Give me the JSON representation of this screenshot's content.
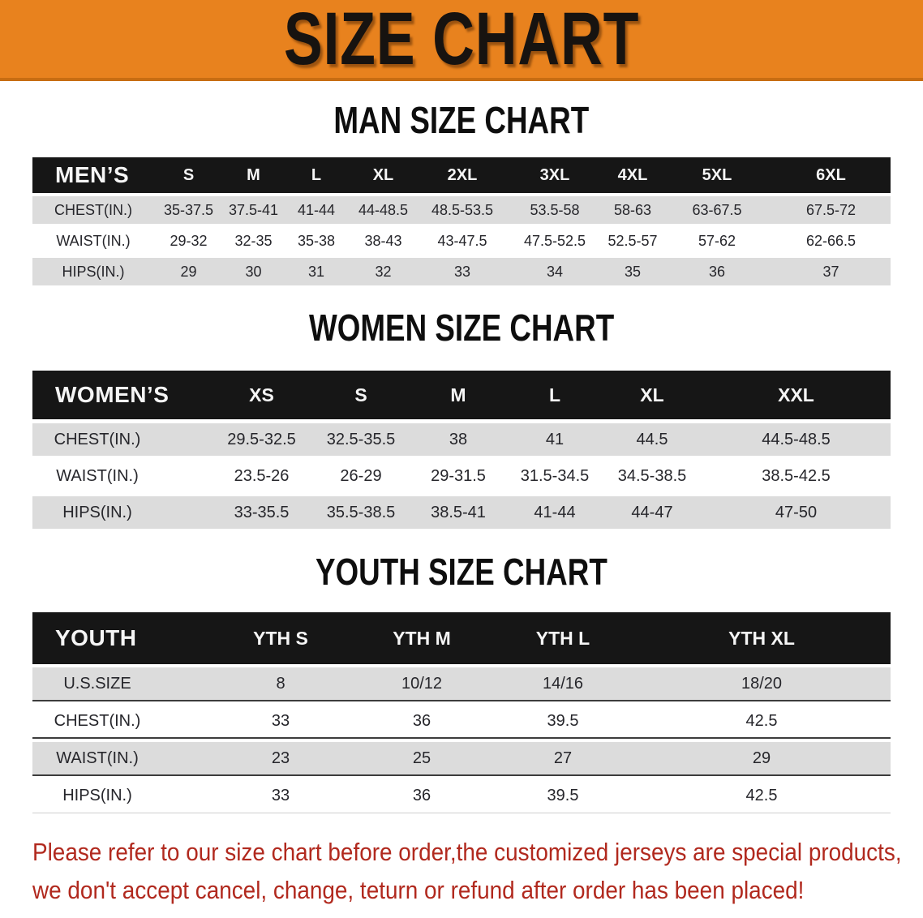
{
  "banner": {
    "title": "SIZE CHART"
  },
  "colors": {
    "banner_orange": "#e8821e",
    "banner_border_orange": "#c76d12",
    "table_header_black": "#161616",
    "row_gray": "#dcdcdc",
    "disclaimer_red": "#b1291e"
  },
  "men": {
    "heading": "MAN SIZE CHART",
    "header": [
      "MEN’S",
      "S",
      "M",
      "L",
      "XL",
      "2XL",
      "3XL",
      "4XL",
      "5XL",
      "6XL"
    ],
    "rows": [
      [
        "CHEST(IN.)",
        "35-37.5",
        "37.5-41",
        "41-44",
        "44-48.5",
        "48.5-53.5",
        "53.5-58",
        "58-63",
        "63-67.5",
        "67.5-72"
      ],
      [
        "WAIST(IN.)",
        "29-32",
        "32-35",
        "35-38",
        "38-43",
        "43-47.5",
        "47.5-52.5",
        "52.5-57",
        "57-62",
        "62-66.5"
      ],
      [
        "HIPS(IN.)",
        "29",
        "30",
        "31",
        "32",
        "33",
        "34",
        "35",
        "36",
        "37"
      ]
    ]
  },
  "women": {
    "heading": "WOMEN SIZE CHART",
    "header": [
      "WOMEN’S",
      "XS",
      "S",
      "M",
      "L",
      "XL",
      "XXL"
    ],
    "rows": [
      [
        "CHEST(IN.)",
        "29.5-32.5",
        "32.5-35.5",
        "38",
        "41",
        "44.5",
        "44.5-48.5"
      ],
      [
        "WAIST(IN.)",
        "23.5-26",
        "26-29",
        "29-31.5",
        "31.5-34.5",
        "34.5-38.5",
        "38.5-42.5"
      ],
      [
        "HIPS(IN.)",
        "33-35.5",
        "35.5-38.5",
        "38.5-41",
        "41-44",
        "44-47",
        "47-50"
      ]
    ]
  },
  "youth": {
    "heading": "YOUTH SIZE CHART",
    "header": [
      "YOUTH",
      "YTH S",
      "YTH M",
      "YTH L",
      "YTH XL"
    ],
    "rows": [
      [
        "U.S.SIZE",
        "8",
        "10/12",
        "14/16",
        "18/20"
      ],
      [
        "CHEST(IN.)",
        "33",
        "36",
        "39.5",
        "42.5"
      ],
      [
        "WAIST(IN.)",
        "23",
        "25",
        "27",
        "29"
      ],
      [
        "HIPS(IN.)",
        "33",
        "36",
        "39.5",
        "42.5"
      ]
    ]
  },
  "disclaimer": {
    "line1": "Please refer to our size chart before order,the customized jerseys are special products,",
    "line2": "we don't accept cancel, change, teturn or refund after order has been placed!"
  }
}
